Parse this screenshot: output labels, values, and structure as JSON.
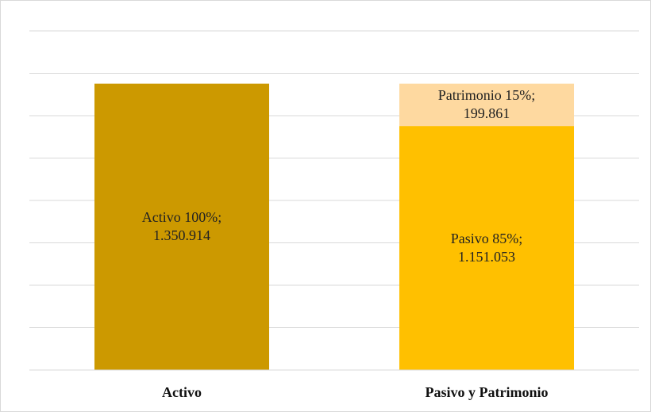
{
  "chart_data": {
    "type": "stacked-bar",
    "categories": [
      "Activo",
      "Pasivo y Patrimonio"
    ],
    "series": [
      {
        "name": "Activo",
        "color": "#cc9900",
        "values": [
          1350914,
          null
        ],
        "value_labels": [
          "Activo 100%; 1.350.914",
          null
        ]
      },
      {
        "name": "Pasivo",
        "color": "#ffc000",
        "values": [
          null,
          1151053
        ],
        "value_labels": [
          null,
          "Pasivo 85%; 1.151.053"
        ]
      },
      {
        "name": "Patrimonio",
        "color": "#fed9a0",
        "values": [
          null,
          199861
        ],
        "value_labels": [
          null,
          "Patrimonio 15%;  199.861"
        ]
      }
    ],
    "ylim": [
      0,
      1600000
    ],
    "yticks": [
      0,
      200000,
      400000,
      600000,
      800000,
      1000000,
      1200000,
      1400000,
      1600000
    ],
    "grid": true
  }
}
